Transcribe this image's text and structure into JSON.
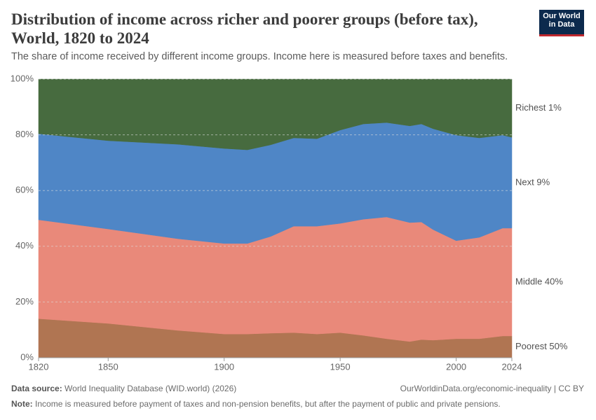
{
  "chart_data": {
    "type": "stacked_area",
    "title": "Distribution of income across richer and poorer groups (before tax), World, 1820 to 2024",
    "subtitle": "The share of income received by different income groups. Income here is measured before taxes and benefits.",
    "logo": "Our World in Data",
    "x": [
      1820,
      1850,
      1880,
      1900,
      1910,
      1920,
      1930,
      1940,
      1950,
      1960,
      1970,
      1980,
      1985,
      1990,
      2000,
      2010,
      2020,
      2024
    ],
    "xlim": [
      1820,
      2024
    ],
    "xticks": [
      1820,
      1850,
      1900,
      1950,
      2000,
      2024
    ],
    "ylim": [
      0,
      100
    ],
    "yticks": [
      {
        "value": 0,
        "label": "0%"
      },
      {
        "value": 20,
        "label": "20%"
      },
      {
        "value": 40,
        "label": "40%"
      },
      {
        "value": 60,
        "label": "60%"
      },
      {
        "value": 80,
        "label": "80%"
      },
      {
        "value": 100,
        "label": "100%"
      }
    ],
    "grid": true,
    "series": [
      {
        "name": "Poorest 50%",
        "color": "#b07552",
        "values": [
          14,
          12.3,
          9.8,
          8.5,
          8.5,
          8.8,
          9,
          8.5,
          9,
          8,
          6.8,
          5.8,
          6.5,
          6.3,
          6.8,
          6.8,
          7.8,
          7.8
        ]
      },
      {
        "name": "Middle 40%",
        "color": "#e9897a",
        "values": [
          35.5,
          33.9,
          32.9,
          32.5,
          32.5,
          34.7,
          38.2,
          38.7,
          39.2,
          41.7,
          43.7,
          42.7,
          42.2,
          39.7,
          35.2,
          36.4,
          38.7,
          38.7
        ]
      },
      {
        "name": "Next 9%",
        "color": "#4f86c6",
        "values": [
          30.9,
          31.7,
          33.9,
          34.1,
          33.6,
          32.9,
          31.7,
          31.4,
          33.5,
          34.2,
          33.9,
          34.7,
          35.2,
          36.2,
          37.9,
          35.7,
          33.4,
          32.6
        ]
      },
      {
        "name": "Richest 1%",
        "color": "#476b3f",
        "values": [
          19.6,
          22.1,
          23.4,
          24.9,
          25.4,
          23.6,
          21.1,
          21.4,
          18.3,
          16.1,
          15.6,
          16.8,
          16.1,
          17.8,
          20.1,
          21.1,
          20.1,
          20.9
        ]
      }
    ],
    "source_label": "Data source:",
    "source": "World Inequality Database (WID.world) (2026)",
    "url": "OurWorldinData.org/economic-inequality | CC BY",
    "note_label": "Note:",
    "note": "Income is measured before payment of taxes and non-pension benefits, but after the payment of public and private pensions."
  }
}
